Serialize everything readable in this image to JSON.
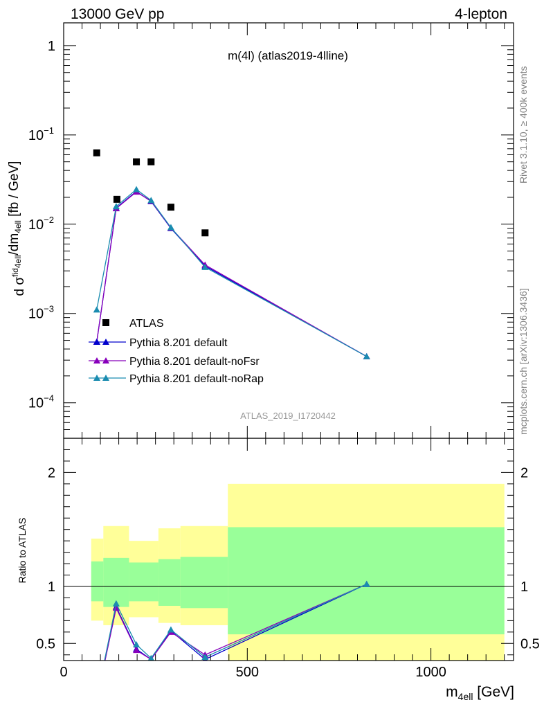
{
  "header": {
    "left": "13000 GeV pp",
    "right": "4-lepton"
  },
  "side_text": {
    "rivet": "Rivet 3.1.10, ≥ 400k events",
    "mcplots": "mcplots.cern.ch [arXiv:1306.3436]"
  },
  "chart_data": [
    {
      "type": "scatter",
      "panel": "main",
      "title": "m(4l) (atlas2019-4lline)",
      "watermark": "ATLAS_2019_I1720442",
      "ylabel": "d σᶠid4ell/dm4ell [fb / GeV]",
      "ylabel_parts": {
        "a": "d σ",
        "b": "fid",
        "c": "4ell",
        "d": "/dm",
        "e": "4ell",
        "f": " [fb / GeV]"
      },
      "yscale": "log",
      "ylim": [
        4e-05,
        1.8
      ],
      "xlim": [
        0,
        1225
      ],
      "y_ticks": [
        {
          "value": 1,
          "base": "1",
          "exp": ""
        },
        {
          "value": 0.1,
          "base": "10",
          "exp": "−1"
        },
        {
          "value": 0.01,
          "base": "10",
          "exp": "−2"
        },
        {
          "value": 0.001,
          "base": "10",
          "exp": "−3"
        },
        {
          "value": 0.0001,
          "base": "10",
          "exp": "−4"
        }
      ],
      "legend_position": "bottom-left",
      "series": [
        {
          "name": "ATLAS",
          "kind": "data",
          "color": "#000000",
          "x": [
            90,
            145,
            198,
            238,
            292,
            385
          ],
          "y": [
            0.063,
            0.019,
            0.05,
            0.05,
            0.0155,
            0.008
          ]
        },
        {
          "name": "Pythia 8.201 default",
          "kind": "mc",
          "color": "#0000cc",
          "x": [
            90,
            143,
            198,
            238,
            292,
            385,
            825
          ],
          "y": [
            0.00048,
            0.0152,
            0.0233,
            0.018,
            0.009,
            0.0034,
            0.00033
          ]
        },
        {
          "name": "Pythia 8.201 default-noFsr",
          "kind": "mc",
          "color": "#8800bb",
          "x": [
            90,
            143,
            198,
            238,
            292,
            385,
            825
          ],
          "y": [
            0.00048,
            0.015,
            0.023,
            0.0182,
            0.0091,
            0.0035,
            0.00033
          ]
        },
        {
          "name": "Pythia 8.201 default-noRap",
          "kind": "mc",
          "color": "#1a8cb0",
          "x": [
            90,
            143,
            198,
            238,
            292,
            385,
            825
          ],
          "y": [
            0.0011,
            0.0158,
            0.0245,
            0.0185,
            0.0092,
            0.0033,
            0.00033
          ]
        }
      ]
    },
    {
      "type": "line",
      "panel": "ratio",
      "ylabel": "Ratio to ATLAS",
      "xlabel": "m4ell [GeV]",
      "xlabel_parts": {
        "a": "m",
        "b": "4ell",
        "c": " [GeV]"
      },
      "xlim": [
        0,
        1225
      ],
      "ylim": [
        0.35,
        2.3
      ],
      "x_ticks": [
        0,
        500,
        1000
      ],
      "y_ticks": [
        0.5,
        1,
        2
      ],
      "reference_line": 1,
      "bands": [
        {
          "x0": 75,
          "x1": 108,
          "y_lo": 0.87,
          "y_hi": 1.22,
          "o_lo": 0.7,
          "o_hi": 1.42
        },
        {
          "x0": 108,
          "x1": 178,
          "y_lo": 0.82,
          "y_hi": 1.25,
          "o_lo": 0.66,
          "o_hi": 1.53
        },
        {
          "x0": 178,
          "x1": 258,
          "y_lo": 0.87,
          "y_hi": 1.21,
          "o_lo": 0.73,
          "o_hi": 1.4
        },
        {
          "x0": 258,
          "x1": 318,
          "y_lo": 0.83,
          "y_hi": 1.24,
          "o_lo": 0.68,
          "o_hi": 1.51
        },
        {
          "x0": 318,
          "x1": 447,
          "y_lo": 0.81,
          "y_hi": 1.26,
          "o_lo": 0.66,
          "o_hi": 1.53
        },
        {
          "x0": 447,
          "x1": 1200,
          "y_lo": 0.58,
          "y_hi": 1.52,
          "o_lo": 0.35,
          "o_hi": 1.9
        }
      ],
      "series": [
        {
          "name": "Pythia 8.201 default",
          "color": "#0000cc",
          "x": [
            90,
            143,
            198,
            238,
            292,
            385,
            825
          ],
          "y": [
            0.007,
            0.82,
            0.45,
            0.36,
            0.61,
            0.36,
            1.02
          ]
        },
        {
          "name": "Pythia 8.201 default-noFsr",
          "color": "#8800bb",
          "x": [
            90,
            143,
            198,
            238,
            292,
            385,
            825
          ],
          "y": [
            0.007,
            0.81,
            0.44,
            0.36,
            0.6,
            0.4,
            1.02
          ]
        },
        {
          "name": "Pythia 8.201 default-noRap",
          "color": "#1a8cb0",
          "x": [
            90,
            143,
            198,
            238,
            292,
            385,
            825
          ],
          "y": [
            0.017,
            0.85,
            0.49,
            0.37,
            0.62,
            0.38,
            1.02
          ]
        }
      ]
    }
  ]
}
